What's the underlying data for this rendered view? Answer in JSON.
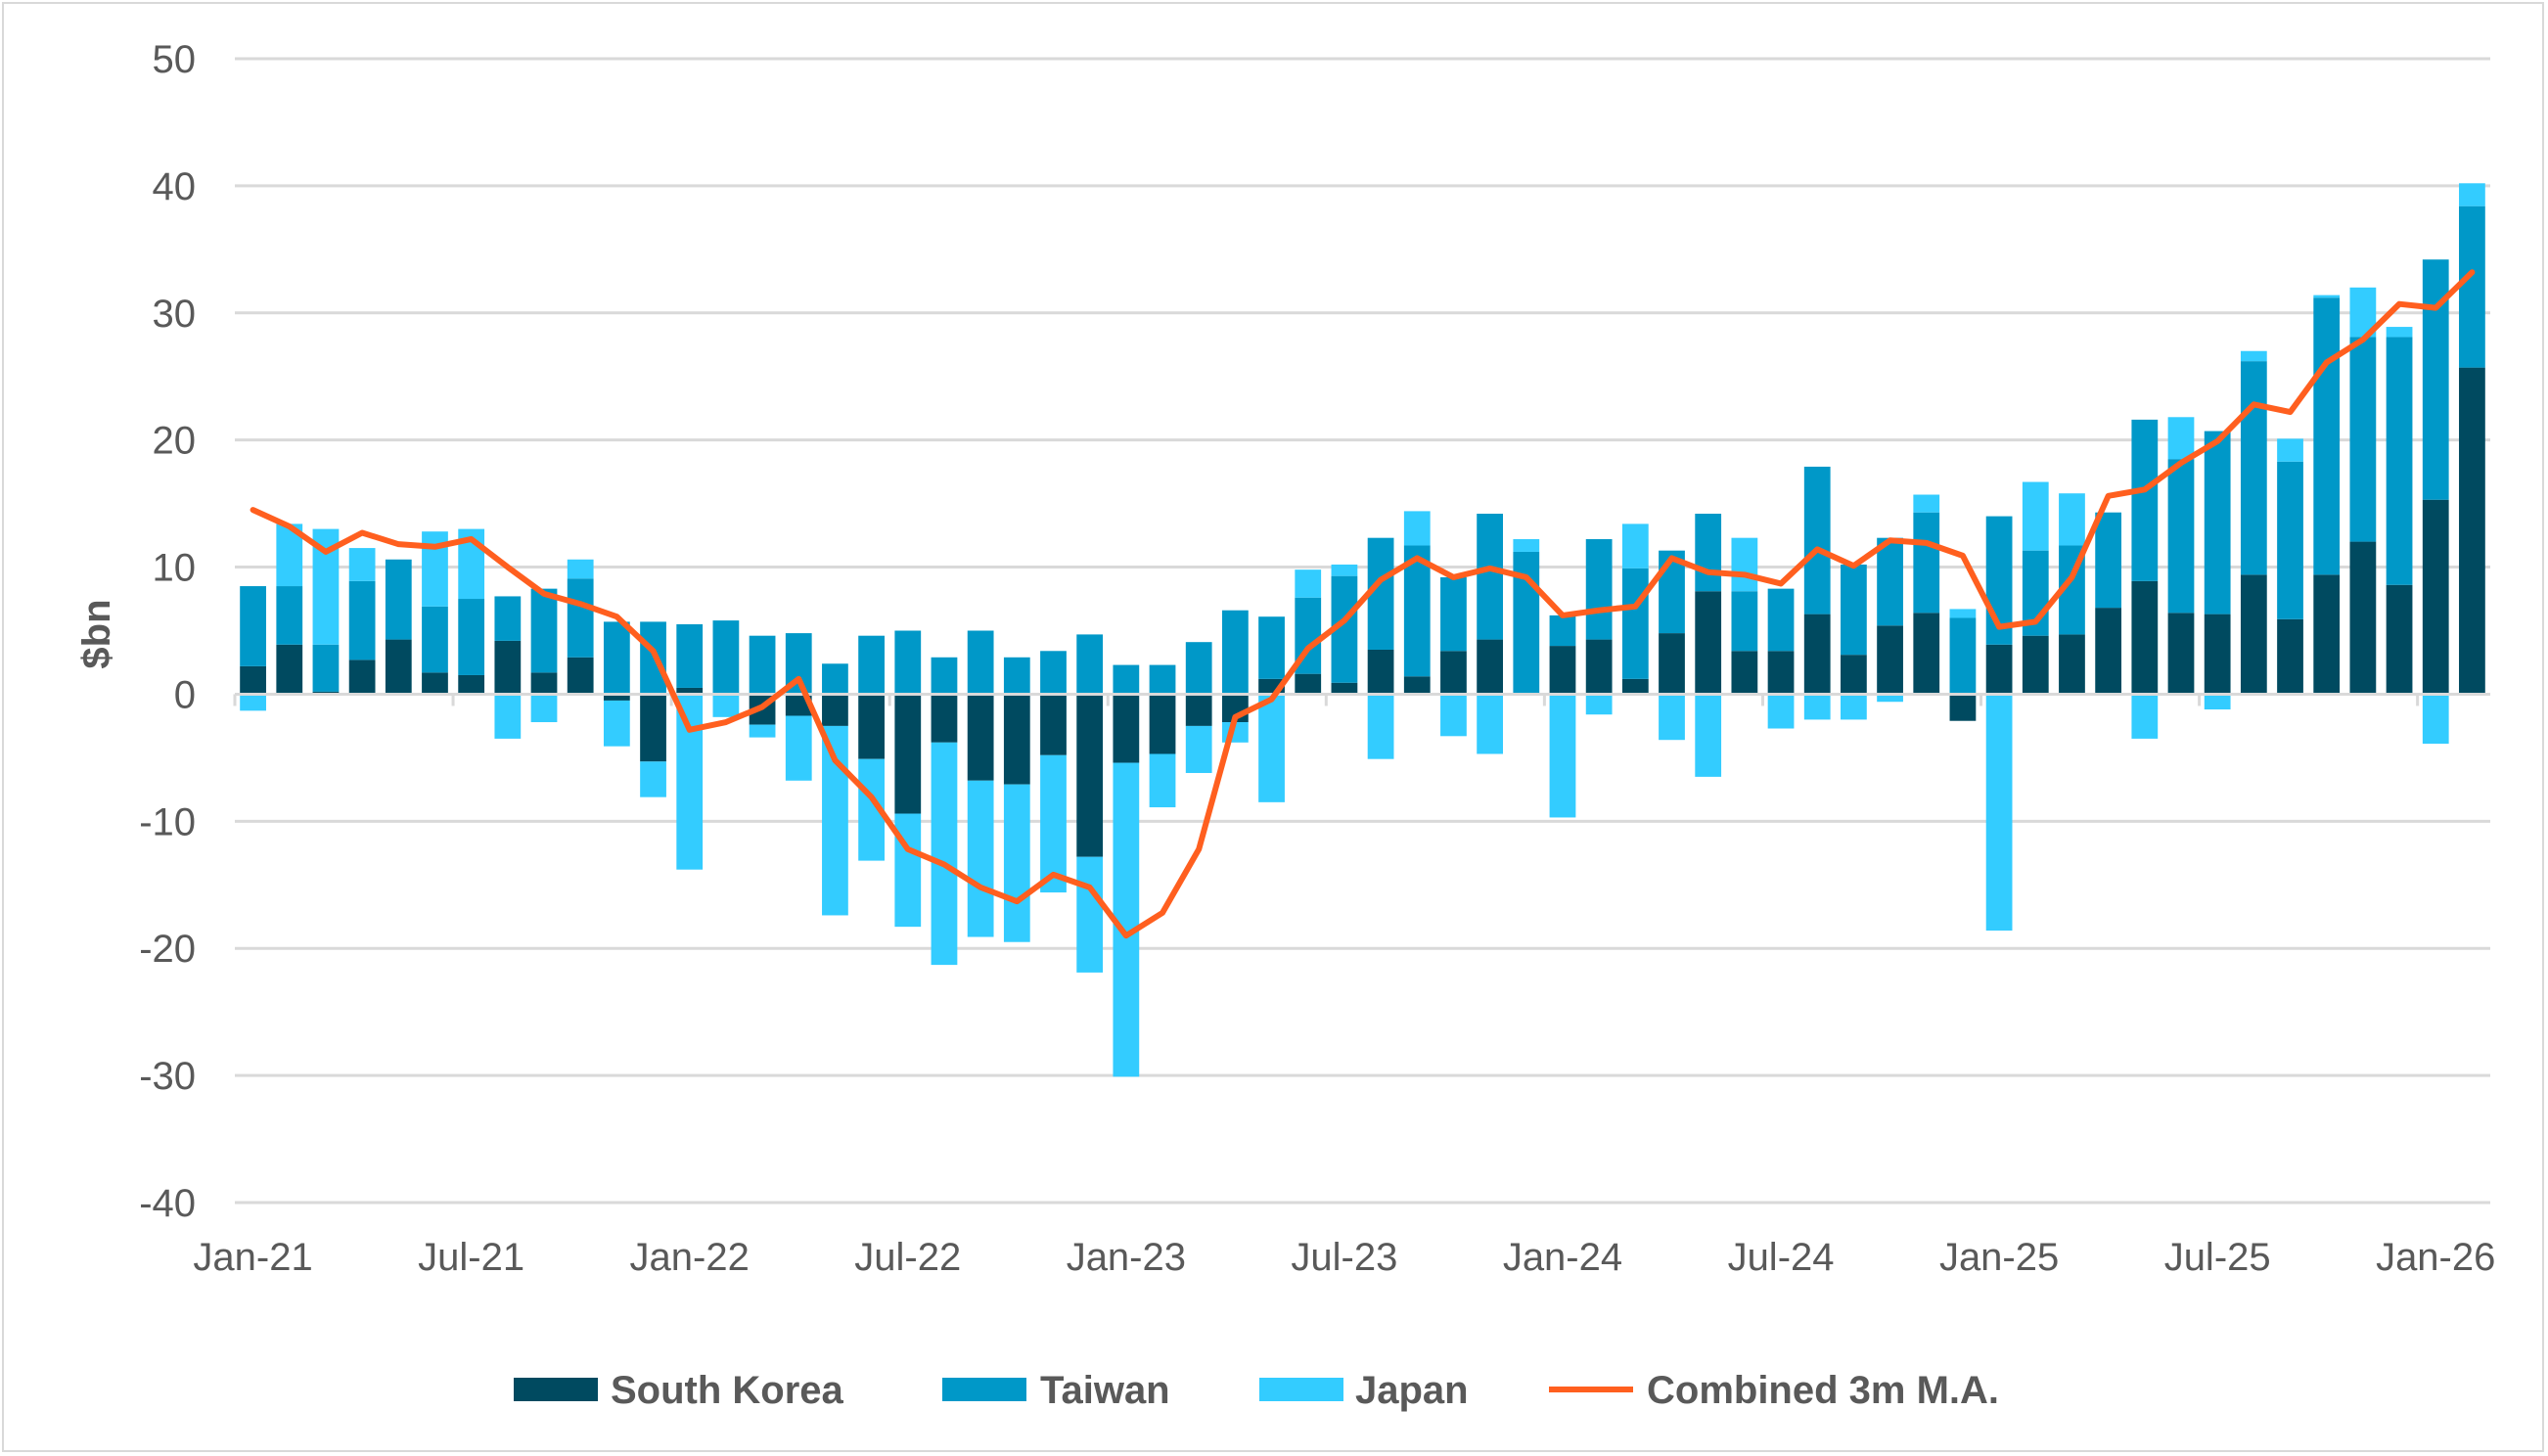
{
  "chart_data": {
    "type": "bar",
    "stacked": true,
    "title": "",
    "xlabel": "",
    "ylabel": "$bn",
    "ylim": [
      -40,
      50
    ],
    "yticks": [
      -40,
      -30,
      -20,
      -10,
      0,
      10,
      20,
      30,
      40,
      50
    ],
    "grid": true,
    "legend_position": "bottom",
    "categories": [
      "Jan-21",
      "Feb-21",
      "Mar-21",
      "Apr-21",
      "May-21",
      "Jun-21",
      "Jul-21",
      "Aug-21",
      "Sep-21",
      "Oct-21",
      "Nov-21",
      "Dec-21",
      "Jan-22",
      "Feb-22",
      "Mar-22",
      "Apr-22",
      "May-22",
      "Jun-22",
      "Jul-22",
      "Aug-22",
      "Sep-22",
      "Oct-22",
      "Nov-22",
      "Dec-22",
      "Jan-23",
      "Feb-23",
      "Mar-23",
      "Apr-23",
      "May-23",
      "Jun-23",
      "Jul-23",
      "Aug-23",
      "Sep-23",
      "Oct-23",
      "Nov-23",
      "Dec-23",
      "Jan-24",
      "Feb-24",
      "Mar-24",
      "Apr-24",
      "May-24",
      "Jun-24",
      "Jul-24",
      "Aug-24",
      "Sep-24",
      "Oct-24",
      "Nov-24",
      "Dec-24",
      "Jan-25",
      "Feb-25",
      "Mar-25",
      "Apr-25",
      "May-25",
      "Jun-25",
      "Jul-25",
      "Aug-25",
      "Sep-25",
      "Oct-25",
      "Nov-25",
      "Dec-25",
      "Jan-26",
      "Feb-26"
    ],
    "xtick_labels": [
      "Jan-21",
      "Jul-21",
      "Jan-22",
      "Jul-22",
      "Jan-23",
      "Jul-23",
      "Jan-24",
      "Jul-24",
      "Jan-25",
      "Jul-25",
      "Jan-26"
    ],
    "series": [
      {
        "name": "South Korea",
        "kind": "bar",
        "color": "#004A60",
        "values": [
          2.2,
          3.9,
          0.2,
          2.7,
          4.3,
          1.7,
          1.5,
          4.2,
          1.7,
          2.9,
          -0.5,
          -5.3,
          0.5,
          0,
          -2.4,
          -1.7,
          -2.5,
          -5.1,
          -9.4,
          -3.8,
          -6.8,
          -7.1,
          -4.8,
          -12.8,
          -5.4,
          -4.7,
          -2.5,
          -2.2,
          1.2,
          1.6,
          0.9,
          3.5,
          1.4,
          3.4,
          4.3,
          0,
          3.8,
          4.3,
          1.2,
          4.8,
          8.1,
          3.4,
          3.4,
          6.3,
          3.1,
          5.4,
          6.4,
          -2.1,
          3.9,
          4.6,
          4.7,
          6.8,
          8.9,
          6.4,
          6.3,
          9.4,
          5.9,
          9.4,
          12.0,
          8.6,
          15.3,
          25.7
        ]
      },
      {
        "name": "Taiwan",
        "kind": "bar",
        "color": "#0098C8",
        "values": [
          6.3,
          4.6,
          3.7,
          6.2,
          6.3,
          5.2,
          6.0,
          3.5,
          6.6,
          6.2,
          5.7,
          5.7,
          5.0,
          5.8,
          4.6,
          4.8,
          2.4,
          4.6,
          5.0,
          2.9,
          5.0,
          2.9,
          3.4,
          4.7,
          2.3,
          2.3,
          4.1,
          6.6,
          4.9,
          6.0,
          8.4,
          8.8,
          10.3,
          5.8,
          9.9,
          11.2,
          2.4,
          7.9,
          8.7,
          6.5,
          6.1,
          4.7,
          4.9,
          11.6,
          7.1,
          6.9,
          7.9,
          6.0,
          10.1,
          6.7,
          7.0,
          7.5,
          12.7,
          12.1,
          14.4,
          16.8,
          12.4,
          21.8,
          16.1,
          19.5,
          18.9,
          12.7
        ]
      },
      {
        "name": "Japan",
        "kind": "bar",
        "color": "#33CCFF",
        "values": [
          -1.3,
          4.9,
          9.1,
          2.6,
          0,
          5.9,
          5.5,
          -3.5,
          -2.2,
          1.5,
          -3.6,
          -2.8,
          -13.8,
          -1.8,
          -1.0,
          -5.1,
          -14.9,
          -8.0,
          -8.9,
          -17.5,
          -12.3,
          -12.4,
          -10.8,
          -9.1,
          -24.7,
          -4.2,
          -3.7,
          -1.6,
          -8.5,
          2.2,
          0.9,
          -5.1,
          2.7,
          -3.3,
          -4.7,
          1.0,
          -9.7,
          -1.6,
          3.5,
          -3.6,
          -6.5,
          4.2,
          -2.7,
          -2.0,
          -2.0,
          -0.6,
          1.4,
          0.7,
          -18.6,
          5.4,
          4.1,
          0,
          -3.5,
          3.3,
          -1.2,
          0.8,
          1.8,
          0.2,
          3.9,
          0.8,
          -3.9,
          1.8
        ]
      },
      {
        "name": "Combined 3m M.A.",
        "kind": "line",
        "color": "#FF5F1F",
        "values": [
          14.5,
          13.2,
          11.2,
          12.7,
          11.8,
          11.6,
          12.2,
          10.0,
          7.9,
          7.1,
          6.1,
          3.4,
          -2.8,
          -2.2,
          -1.0,
          1.2,
          -5.2,
          -8.1,
          -12.2,
          -13.4,
          -15.2,
          -16.3,
          -14.2,
          -15.2,
          -19.0,
          -17.2,
          -12.2,
          -1.8,
          -0.4,
          3.6,
          5.8,
          9.0,
          10.7,
          9.2,
          9.9,
          9.2,
          6.2,
          6.6,
          6.9,
          10.7,
          9.6,
          9.4,
          8.7,
          11.4,
          10.1,
          12.1,
          11.9,
          10.9,
          5.3,
          5.7,
          9.2,
          15.6,
          16.1,
          18.2,
          19.9,
          22.8,
          22.2,
          26.1,
          27.9,
          30.7,
          30.4,
          33.2
        ]
      }
    ]
  }
}
